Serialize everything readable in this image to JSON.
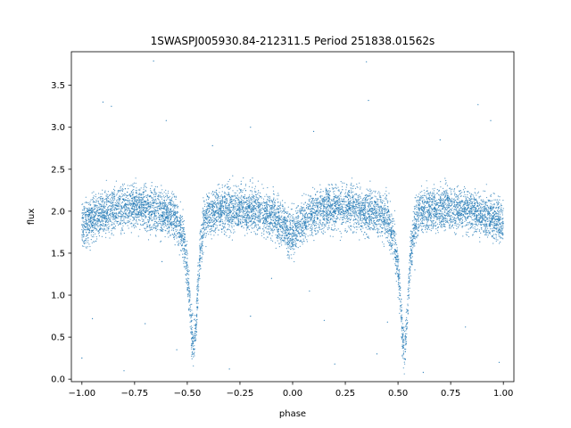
{
  "chart_data": {
    "type": "scatter",
    "title": "1SWASPJ005930.84-212311.5 Period 251838.01562s",
    "xlabel": "phase",
    "ylabel": "flux",
    "xlim": [
      -1.05,
      1.05
    ],
    "ylim": [
      -0.03,
      3.9
    ],
    "grid": false,
    "legend": "none",
    "marker_color": "#1f77b4",
    "x_ticks": [
      {
        "value": -1.0,
        "label": "−1.00"
      },
      {
        "value": -0.75,
        "label": "−0.75"
      },
      {
        "value": -0.5,
        "label": "−0.50"
      },
      {
        "value": -0.25,
        "label": "−0.25"
      },
      {
        "value": 0.0,
        "label": "0.00"
      },
      {
        "value": 0.25,
        "label": "0.25"
      },
      {
        "value": 0.5,
        "label": "0.50"
      },
      {
        "value": 0.75,
        "label": "0.75"
      },
      {
        "value": 1.0,
        "label": "1.00"
      }
    ],
    "y_ticks": [
      {
        "value": 0.0,
        "label": "0.0"
      },
      {
        "value": 0.5,
        "label": "0.5"
      },
      {
        "value": 1.0,
        "label": "1.0"
      },
      {
        "value": 1.5,
        "label": "1.5"
      },
      {
        "value": 2.0,
        "label": "2.0"
      },
      {
        "value": 2.5,
        "label": "2.5"
      },
      {
        "value": 3.0,
        "label": "3.0"
      },
      {
        "value": 3.5,
        "label": "3.5"
      }
    ],
    "series": [
      {
        "x": [
          -1.0,
          -0.95,
          -0.9,
          -0.85,
          -0.8,
          -0.75,
          -0.7,
          -0.65,
          -0.6,
          -0.55,
          -0.52,
          -0.5,
          -0.49,
          -0.48,
          -0.47,
          -0.46,
          -0.45,
          -0.44,
          -0.42,
          -0.4,
          -0.35,
          -0.3,
          -0.25,
          -0.2,
          -0.15,
          -0.1,
          -0.05,
          -0.02,
          0.0,
          0.02,
          0.05,
          0.1,
          0.15,
          0.2,
          0.25,
          0.3,
          0.35,
          0.4,
          0.45,
          0.48,
          0.5,
          0.51,
          0.52,
          0.53,
          0.54,
          0.55,
          0.56,
          0.58,
          0.6,
          0.65,
          0.7,
          0.75,
          0.8,
          0.85,
          0.9,
          0.95,
          1.0
        ],
        "y": [
          1.85,
          1.9,
          1.97,
          2.02,
          2.05,
          2.05,
          2.03,
          2.0,
          1.97,
          1.92,
          1.7,
          1.3,
          1.0,
          0.6,
          0.35,
          0.55,
          1.1,
          1.5,
          1.85,
          1.98,
          2.02,
          2.03,
          2.04,
          2.03,
          2.0,
          1.95,
          1.85,
          1.75,
          1.72,
          1.78,
          1.88,
          1.98,
          2.03,
          2.05,
          2.05,
          2.03,
          2.0,
          1.97,
          1.9,
          1.7,
          1.3,
          1.0,
          0.6,
          0.35,
          0.55,
          1.1,
          1.5,
          1.85,
          1.98,
          2.02,
          2.03,
          2.04,
          2.03,
          2.0,
          1.96,
          1.92,
          1.85
        ],
        "scatter_width": 0.13,
        "outliers": [
          [
            -0.66,
            3.79
          ],
          [
            -0.9,
            3.3
          ],
          [
            -0.86,
            3.25
          ],
          [
            0.36,
            3.32
          ],
          [
            0.35,
            3.78
          ],
          [
            0.88,
            3.27
          ],
          [
            -0.6,
            3.08
          ],
          [
            0.94,
            3.08
          ],
          [
            -0.2,
            3.0
          ],
          [
            0.1,
            2.95
          ],
          [
            -0.38,
            2.78
          ],
          [
            0.7,
            2.85
          ],
          [
            -0.95,
            0.72
          ],
          [
            -0.7,
            0.66
          ],
          [
            -0.2,
            0.75
          ],
          [
            0.15,
            0.7
          ],
          [
            0.45,
            0.68
          ],
          [
            0.82,
            0.62
          ],
          [
            -0.8,
            0.1
          ],
          [
            -0.3,
            0.12
          ],
          [
            0.2,
            0.18
          ],
          [
            0.62,
            0.08
          ],
          [
            -0.55,
            0.35
          ],
          [
            0.4,
            0.3
          ],
          [
            -1.0,
            0.25
          ],
          [
            0.98,
            0.2
          ],
          [
            -0.1,
            1.2
          ],
          [
            0.08,
            1.05
          ],
          [
            -0.62,
            1.4
          ],
          [
            0.58,
            1.3
          ]
        ]
      }
    ]
  }
}
